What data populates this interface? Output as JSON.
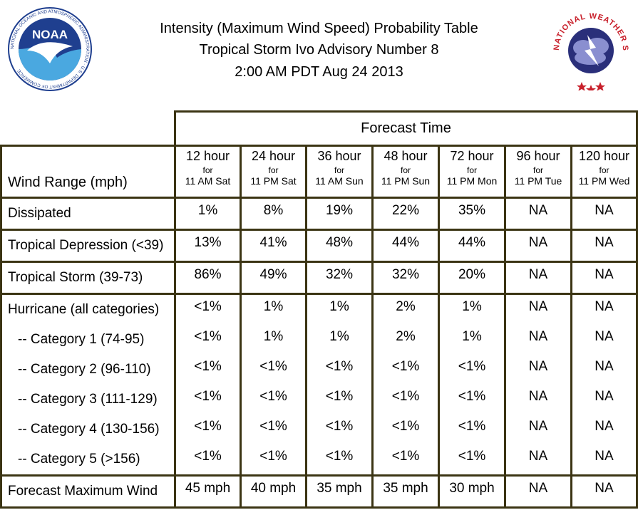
{
  "header": {
    "line1": "Intensity (Maximum Wind Speed) Probability Table",
    "line2": "Tropical Storm Ivo Advisory Number 8",
    "line3": "2:00 AM PDT Aug 24 2013"
  },
  "logos": {
    "noaa_text": "NOAA",
    "noaa_ring": "NATIONAL OCEANIC AND ATMOSPHERIC ADMINISTRATION · U.S. DEPARTMENT OF COMMERCE",
    "nws_ring": "NATIONAL WEATHER SERVICE"
  },
  "table": {
    "forecast_time_label": "Forecast Time",
    "row_header_label": "Wind Range (mph)",
    "for_label": "for",
    "columns": [
      {
        "hour": "12 hour",
        "when": "11 AM Sat"
      },
      {
        "hour": "24 hour",
        "when": "11 PM Sat"
      },
      {
        "hour": "36 hour",
        "when": "11 AM Sun"
      },
      {
        "hour": "48 hour",
        "when": "11 PM Sun"
      },
      {
        "hour": "72 hour",
        "when": "11 PM Mon"
      },
      {
        "hour": "96 hour",
        "when": "11 PM Tue"
      },
      {
        "hour": "120 hour",
        "when": "11 PM Wed"
      }
    ],
    "rows": [
      {
        "label": "Dissipated",
        "values": [
          "1%",
          "8%",
          "19%",
          "22%",
          "35%",
          "NA",
          "NA"
        ]
      },
      {
        "label": "Tropical Depression (<39)",
        "values": [
          "13%",
          "41%",
          "48%",
          "44%",
          "44%",
          "NA",
          "NA"
        ]
      },
      {
        "label": "Tropical Storm (39-73)",
        "values": [
          "86%",
          "49%",
          "32%",
          "32%",
          "20%",
          "NA",
          "NA"
        ]
      },
      {
        "label": "Hurricane (all categories)",
        "values": [
          "<1%",
          "1%",
          "1%",
          "2%",
          "1%",
          "NA",
          "NA"
        ]
      },
      {
        "label": "-- Category 1 (74-95)",
        "values": [
          "<1%",
          "1%",
          "1%",
          "2%",
          "1%",
          "NA",
          "NA"
        ]
      },
      {
        "label": "-- Category 2 (96-110)",
        "values": [
          "<1%",
          "<1%",
          "<1%",
          "<1%",
          "<1%",
          "NA",
          "NA"
        ]
      },
      {
        "label": "-- Category 3 (111-129)",
        "values": [
          "<1%",
          "<1%",
          "<1%",
          "<1%",
          "<1%",
          "NA",
          "NA"
        ]
      },
      {
        "label": "-- Category 4 (130-156)",
        "values": [
          "<1%",
          "<1%",
          "<1%",
          "<1%",
          "<1%",
          "NA",
          "NA"
        ]
      },
      {
        "label": "-- Category 5 (>156)",
        "values": [
          "<1%",
          "<1%",
          "<1%",
          "<1%",
          "<1%",
          "NA",
          "NA"
        ]
      }
    ],
    "max_wind": {
      "label": "Forecast Maximum Wind",
      "values": [
        "45 mph",
        "40 mph",
        "35 mph",
        "35 mph",
        "30 mph",
        "NA",
        "NA"
      ]
    }
  },
  "colors": {
    "border": "#3b3413",
    "noaa_blue": "#1f3f8f",
    "nws_red": "#c8202b",
    "nws_blue": "#2a2f7a"
  }
}
